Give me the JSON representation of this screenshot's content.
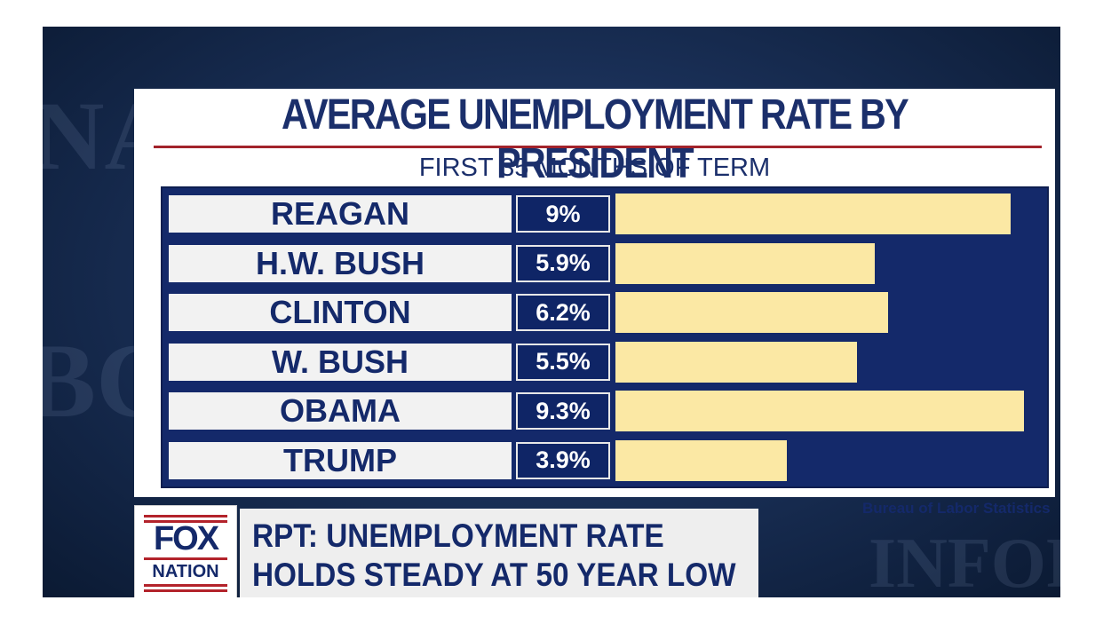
{
  "chart_data": {
    "type": "bar",
    "orientation": "horizontal",
    "title": "AVERAGE UNEMPLOYMENT RATE BY PRESIDENT",
    "subtitle": "FIRST 35 MONTHS OF TERM",
    "categories": [
      "REAGAN",
      "H.W. BUSH",
      "CLINTON",
      "W. BUSH",
      "OBAMA",
      "TRUMP"
    ],
    "values": [
      9,
      5.9,
      6.2,
      5.5,
      9.3,
      3.9
    ],
    "value_labels": [
      "9%",
      "5.9%",
      "6.2%",
      "5.5%",
      "9.3%",
      "3.9%"
    ],
    "unit": "%",
    "xlim": [
      0,
      9.3
    ],
    "source": "Bureau of Labor Statistics"
  },
  "logo": {
    "top": "FOX",
    "bottom": "NATION"
  },
  "banner": {
    "line1": "RPT: UNEMPLOYMENT RATE",
    "line2": "HOLDS STEADY AT 50 YEAR LOW"
  },
  "colors": {
    "navy": "#14296a",
    "bar": "#fbe8a4",
    "accent_red": "#a2232b"
  }
}
